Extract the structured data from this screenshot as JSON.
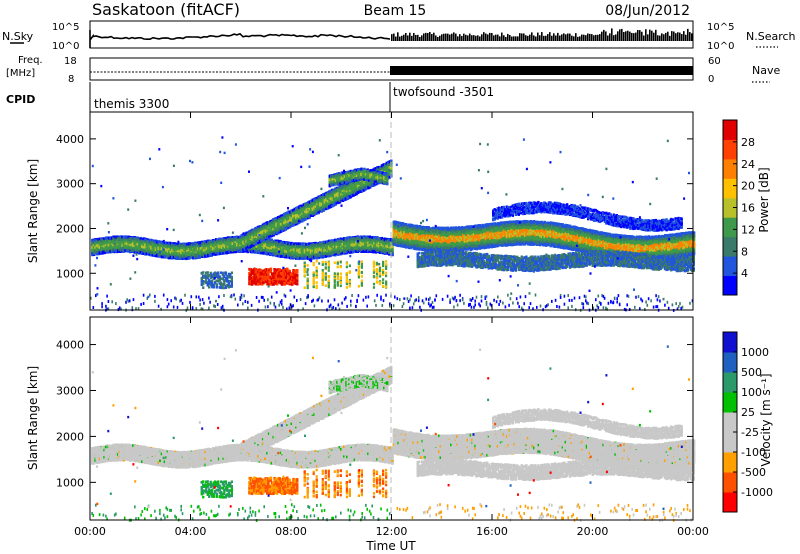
{
  "header": {
    "radar": "Saskatoon (fitACF)",
    "beam": "Beam 15",
    "date": "08/Jun/2012"
  },
  "top_panels": {
    "nsky_label": "N.Sky",
    "nsearch_label": "N.Search",
    "left_ticks": [
      "10^5",
      "10^0"
    ],
    "right_ticks": [
      "10^5",
      "10^0"
    ],
    "freq_label": "Freq.",
    "freq_unit": "[MHz]",
    "freq_ticks": [
      "18",
      "8"
    ],
    "nave_label": "Nave",
    "nave_ticks": [
      "60",
      "0"
    ],
    "cpid_label": "CPID",
    "cpid_segments": [
      "themis 3300",
      "twofsound -3501"
    ]
  },
  "colors": {
    "power_scale": [
      "#0000ff",
      "#2255dd",
      "#3a7a6a",
      "#3e9a4a",
      "#b8c02a",
      "#ffc000",
      "#ff8000",
      "#ff4000",
      "#e00000"
    ],
    "velocity_scale": [
      "#ff0000",
      "#ff5000",
      "#ffa000",
      "#c8c8c8",
      "#c8c8c8",
      "#00c000",
      "#2a9a6a",
      "#2060c0",
      "#1010d0"
    ]
  },
  "chart_data": [
    {
      "type": "heatmap",
      "title": "Power",
      "ylabel": "Slant Range [km]",
      "xlabel": "Time UT",
      "ylim": [
        180,
        4600
      ],
      "yticks": [
        "1000",
        "2000",
        "3000",
        "4000"
      ],
      "xticks": [
        "00:00",
        "04:00",
        "08:00",
        "12:00",
        "16:00",
        "20:00",
        "00:00"
      ],
      "colorbar_label": "Power [dB]",
      "colorbar_ticks": [
        "4",
        "8",
        "12",
        "16",
        "20",
        "24",
        "28"
      ],
      "features": [
        {
          "range_km": [
            1400,
            1800
          ],
          "time_h": [
            0,
            12
          ],
          "level_db": 12
        },
        {
          "range_km": [
            1600,
            3400
          ],
          "time_h": [
            6,
            12
          ],
          "level_db": 14
        },
        {
          "range_km": [
            700,
            1100
          ],
          "time_h": [
            6.5,
            8
          ],
          "level_db": 26
        },
        {
          "range_km": [
            1500,
            2100
          ],
          "time_h": [
            12,
            24
          ],
          "level_db": 18
        }
      ]
    },
    {
      "type": "heatmap",
      "title": "Velocity",
      "ylabel": "Slant Range [km]",
      "xlabel": "Time UT",
      "ylim": [
        180,
        4600
      ],
      "yticks": [
        "1000",
        "2000",
        "3000",
        "4000"
      ],
      "xticks": [
        "00:00",
        "04:00",
        "08:00",
        "12:00",
        "16:00",
        "20:00",
        "00:00"
      ],
      "colorbar_label": "Velocity [m s⁻¹]",
      "colorbar_ticks": [
        "1000",
        "500",
        "100",
        "25",
        "-25",
        "-100",
        "-500",
        "-1000"
      ],
      "features": [
        {
          "range_km": [
            1400,
            1800
          ],
          "time_h": [
            0,
            12
          ],
          "velocity_ms": 0
        },
        {
          "range_km": [
            700,
            1100
          ],
          "time_h": [
            6.5,
            8.5
          ],
          "velocity_ms": -300
        },
        {
          "range_km": [
            700,
            1000
          ],
          "time_h": [
            4.5,
            5.5
          ],
          "velocity_ms": 200
        },
        {
          "range_km": [
            1500,
            2100
          ],
          "time_h": [
            12,
            24
          ],
          "velocity_ms": 0
        }
      ]
    }
  ],
  "xaxis_title": "Time UT"
}
